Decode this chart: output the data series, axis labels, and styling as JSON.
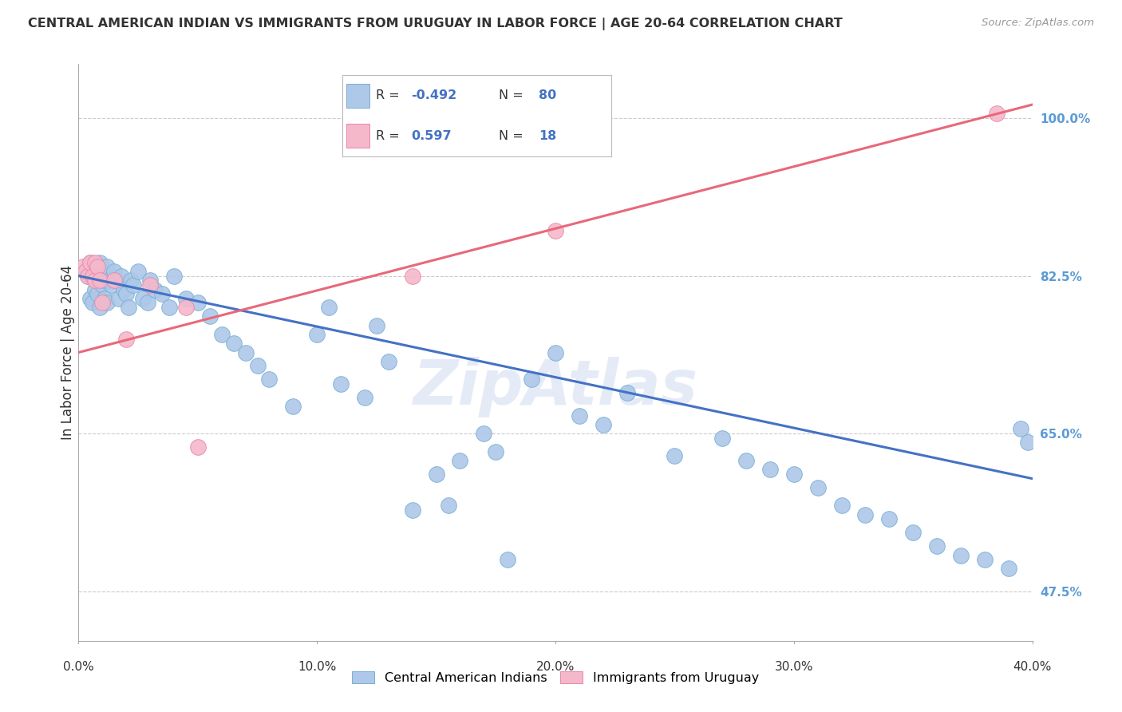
{
  "title": "CENTRAL AMERICAN INDIAN VS IMMIGRANTS FROM URUGUAY IN LABOR FORCE | AGE 20-64 CORRELATION CHART",
  "source": "Source: ZipAtlas.com",
  "ylabel_ticks": [
    47.5,
    65.0,
    82.5,
    100.0
  ],
  "xlabel_ticks": [
    0.0,
    10.0,
    20.0,
    30.0,
    40.0
  ],
  "blue_R": -0.492,
  "blue_N": 80,
  "pink_R": 0.597,
  "pink_N": 18,
  "blue_label": "Central American Indians",
  "pink_label": "Immigrants from Uruguay",
  "watermark": "ZipAtlas",
  "blue_color": "#adc8e8",
  "blue_edge": "#7bafd4",
  "pink_color": "#f5b8cb",
  "pink_edge": "#e888a8",
  "blue_line_color": "#4472c4",
  "pink_line_color": "#e8687a",
  "background": "#ffffff",
  "grid_color": "#cccccc",
  "xlim": [
    0.0,
    40.0
  ],
  "ylim": [
    42.0,
    106.0
  ],
  "blue_line_x0": 0.0,
  "blue_line_y0": 82.5,
  "blue_line_x1": 40.0,
  "blue_line_y1": 60.0,
  "pink_line_x0": 0.0,
  "pink_line_y0": 74.0,
  "pink_line_x1": 40.0,
  "pink_line_y1": 101.5,
  "blue_scatter_x": [
    0.3,
    0.4,
    0.5,
    0.5,
    0.6,
    0.6,
    0.7,
    0.7,
    0.8,
    0.8,
    0.9,
    0.9,
    1.0,
    1.0,
    1.1,
    1.1,
    1.2,
    1.2,
    1.3,
    1.4,
    1.5,
    1.6,
    1.7,
    1.8,
    1.9,
    2.0,
    2.1,
    2.2,
    2.3,
    2.5,
    2.7,
    2.9,
    3.0,
    3.2,
    3.5,
    3.8,
    4.0,
    4.5,
    5.0,
    5.5,
    6.0,
    6.5,
    7.0,
    7.5,
    8.0,
    9.0,
    10.0,
    10.5,
    11.0,
    12.0,
    12.5,
    13.0,
    14.0,
    15.0,
    16.0,
    17.0,
    18.0,
    19.0,
    20.0,
    21.0,
    22.0,
    23.0,
    25.0,
    27.0,
    28.0,
    29.0,
    30.0,
    31.0,
    32.0,
    33.0,
    34.0,
    35.0,
    36.0,
    37.0,
    38.0,
    39.0,
    39.5,
    39.8,
    15.5,
    17.5
  ],
  "blue_scatter_y": [
    83.0,
    82.5,
    84.0,
    80.0,
    83.5,
    79.5,
    82.0,
    81.0,
    82.5,
    80.5,
    84.0,
    79.0,
    83.0,
    81.5,
    82.0,
    80.0,
    83.5,
    79.5,
    82.0,
    81.5,
    83.0,
    82.0,
    80.0,
    82.5,
    81.0,
    80.5,
    79.0,
    82.0,
    81.5,
    83.0,
    80.0,
    79.5,
    82.0,
    81.0,
    80.5,
    79.0,
    82.5,
    80.0,
    79.5,
    78.0,
    76.0,
    75.0,
    74.0,
    72.5,
    71.0,
    68.0,
    76.0,
    79.0,
    70.5,
    69.0,
    77.0,
    73.0,
    56.5,
    60.5,
    62.0,
    65.0,
    51.0,
    71.0,
    74.0,
    67.0,
    66.0,
    69.5,
    62.5,
    64.5,
    62.0,
    61.0,
    60.5,
    59.0,
    57.0,
    56.0,
    55.5,
    54.0,
    52.5,
    51.5,
    51.0,
    50.0,
    65.5,
    64.0,
    57.0,
    63.0
  ],
  "pink_scatter_x": [
    0.2,
    0.3,
    0.4,
    0.5,
    0.6,
    0.7,
    0.7,
    0.8,
    0.9,
    1.0,
    1.5,
    2.0,
    3.0,
    4.5,
    5.0,
    14.0,
    20.0,
    38.5
  ],
  "pink_scatter_y": [
    83.5,
    83.0,
    82.5,
    84.0,
    82.5,
    84.0,
    82.0,
    83.5,
    82.0,
    79.5,
    82.0,
    75.5,
    81.5,
    79.0,
    63.5,
    82.5,
    87.5,
    100.5
  ]
}
